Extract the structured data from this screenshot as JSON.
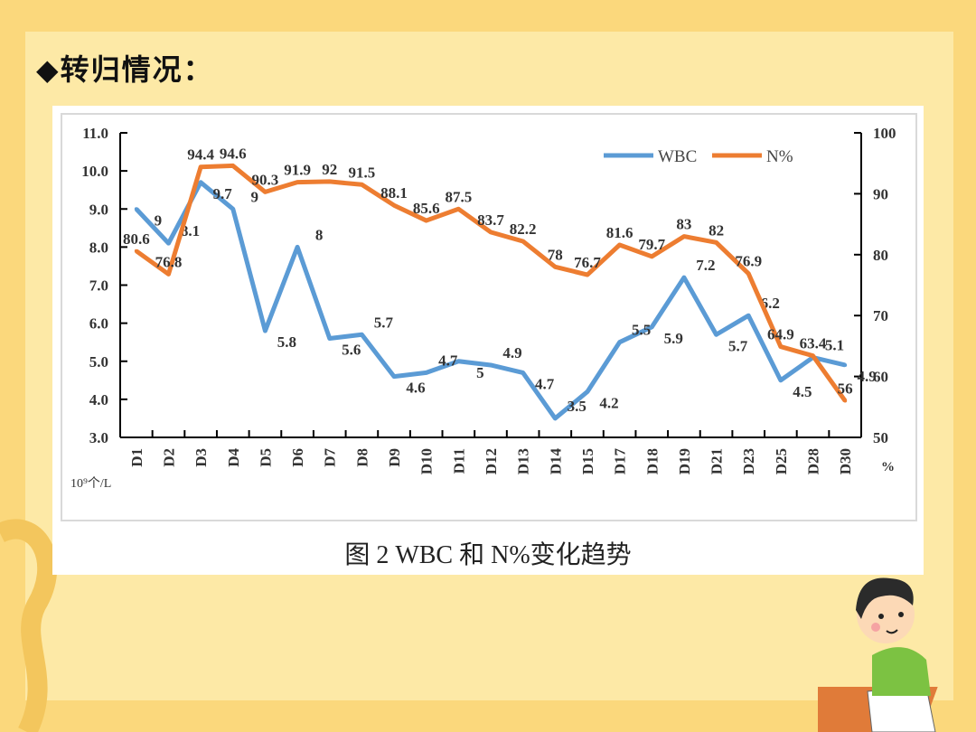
{
  "heading": "◆转归情况：",
  "caption": "图 2 WBC 和 N%变化趋势",
  "chart_data": {
    "type": "line",
    "categories": [
      "D1",
      "D2",
      "D3",
      "D4",
      "D5",
      "D6",
      "D7",
      "D8",
      "D9",
      "D10",
      "D11",
      "D12",
      "D13",
      "D14",
      "D15",
      "D17",
      "D18",
      "D19",
      "D21",
      "D23",
      "D25",
      "D28",
      "D30"
    ],
    "series": [
      {
        "name": "WBC",
        "axis": "left",
        "color": "#5b9bd5",
        "values": [
          9.0,
          8.1,
          9.7,
          9.0,
          5.8,
          8.0,
          5.6,
          5.7,
          4.6,
          4.7,
          5.0,
          4.9,
          4.7,
          3.5,
          4.2,
          5.5,
          5.9,
          7.2,
          5.7,
          6.2,
          4.5,
          5.1,
          4.9
        ]
      },
      {
        "name": "N%",
        "axis": "right",
        "color": "#ed7d31",
        "values": [
          80.6,
          76.8,
          94.4,
          94.6,
          90.3,
          91.9,
          92,
          91.5,
          88.1,
          85.6,
          87.5,
          83.7,
          82.2,
          78,
          76.7,
          81.6,
          79.7,
          83,
          82,
          76.9,
          64.9,
          63.4,
          56
        ]
      }
    ],
    "left_axis": {
      "range": [
        3.0,
        11.0
      ],
      "ticks": [
        "3.0",
        "4.0",
        "5.0",
        "6.0",
        "7.0",
        "8.0",
        "9.0",
        "10.0",
        "11.0"
      ],
      "unit": "10⁹个/L"
    },
    "right_axis": {
      "range": [
        50,
        100
      ],
      "ticks": [
        "50",
        "60",
        "70",
        "80",
        "90",
        "100"
      ],
      "unit": "%"
    },
    "legend_position": "top-right",
    "grid": false
  }
}
